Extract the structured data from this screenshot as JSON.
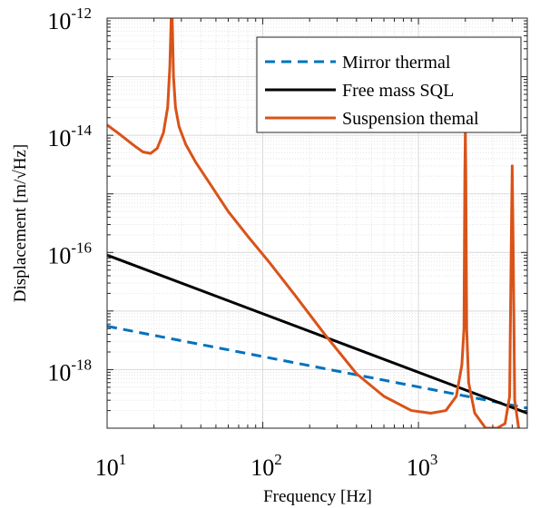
{
  "chart_data": {
    "type": "line",
    "title": "",
    "xlabel": "Frequency [Hz]",
    "ylabel": "Displacement [m/√Hz]",
    "x_scale": "log",
    "y_scale": "log",
    "xlim": [
      10,
      5000
    ],
    "ylim": [
      1e-19,
      1e-12
    ],
    "grid": true,
    "minor_grid": true,
    "legend_position": "top-right",
    "x_ticks": [
      {
        "value": 10,
        "base": "10",
        "exp": "1"
      },
      {
        "value": 100,
        "base": "10",
        "exp": "2"
      },
      {
        "value": 1000,
        "base": "10",
        "exp": "3"
      }
    ],
    "y_ticks": [
      {
        "value": 1e-18,
        "base": "10",
        "exp": "-18"
      },
      {
        "value": 1e-16,
        "base": "10",
        "exp": "-16"
      },
      {
        "value": 1e-14,
        "base": "10",
        "exp": "-14"
      },
      {
        "value": 1e-12,
        "base": "10",
        "exp": "-12"
      }
    ],
    "series": [
      {
        "name": "Mirror thermal",
        "color": "#0072BD",
        "dash": true,
        "x": [
          10,
          5000
        ],
        "y": [
          5.5e-18,
          2.2e-19
        ]
      },
      {
        "name": "Free mass SQL",
        "color": "#000000",
        "dash": false,
        "x": [
          10,
          5000
        ],
        "y": [
          9e-17,
          1.8e-19
        ]
      },
      {
        "name": "Suspension themal",
        "color": "#D95319",
        "dash": false,
        "x": [
          10,
          12,
          15,
          17,
          19,
          21,
          23,
          24.5,
          25.3,
          25.8,
          26.2,
          26.7,
          27.5,
          29,
          32,
          37,
          45,
          60,
          80,
          110,
          160,
          250,
          400,
          600,
          900,
          1200,
          1500,
          1750,
          1900,
          1960,
          1985,
          2000,
          2015,
          2040,
          2100,
          2300,
          2700,
          3200,
          3600,
          3850,
          3950,
          4000,
          4050,
          4150,
          4400
        ],
        "y": [
          1.5e-14,
          1.05e-14,
          6.6e-15,
          5.2e-15,
          4.9e-15,
          6e-15,
          1.1e-14,
          3e-14,
          1.5e-13,
          1e-12,
          1e-12,
          1e-13,
          3e-14,
          1.4e-14,
          7e-15,
          3.5e-15,
          1.6e-15,
          5e-16,
          1.9e-16,
          6.8e-17,
          1.9e-17,
          4e-18,
          8.5e-19,
          3.5e-19,
          2e-19,
          1.8e-19,
          2e-19,
          3.5e-19,
          1.2e-18,
          5e-18,
          2e-15,
          1.2e-14,
          2e-15,
          5e-18,
          6e-19,
          1.8e-19,
          1e-19,
          1e-19,
          1.2e-19,
          3.5e-19,
          2e-16,
          3e-15,
          2e-16,
          3e-19,
          1e-19
        ]
      }
    ]
  }
}
